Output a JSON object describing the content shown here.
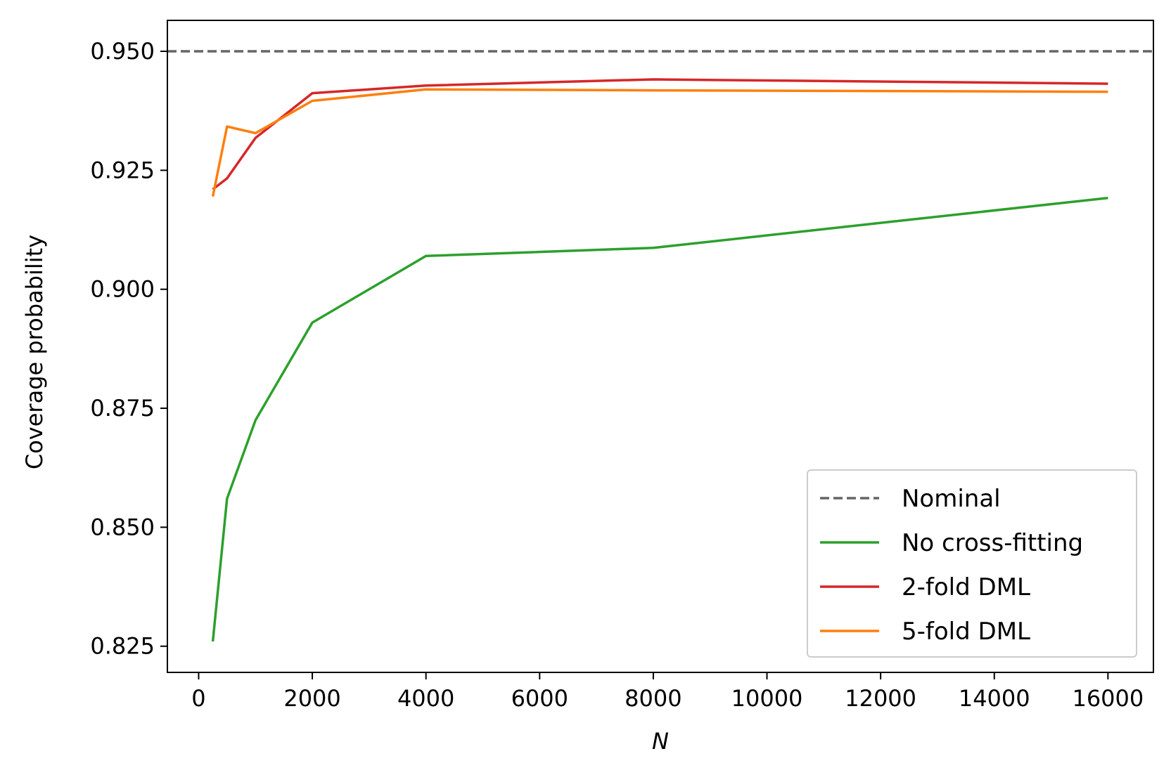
{
  "chart_data": {
    "type": "line",
    "title": "",
    "xlabel": "N",
    "ylabel": "Coverage probability",
    "xlim": [
      -550,
      16800
    ],
    "ylim": [
      0.8195,
      0.9565
    ],
    "xticks": [
      0,
      2000,
      4000,
      6000,
      8000,
      10000,
      12000,
      14000,
      16000
    ],
    "xtick_labels": [
      "0",
      "2000",
      "4000",
      "6000",
      "8000",
      "10000",
      "12000",
      "14000",
      "16000"
    ],
    "yticks": [
      0.825,
      0.85,
      0.875,
      0.9,
      0.925,
      0.95
    ],
    "ytick_labels": [
      "0.825",
      "0.850",
      "0.875",
      "0.900",
      "0.925",
      "0.950"
    ],
    "grid": false,
    "legend_position": "lower-right",
    "series": [
      {
        "name": "Nominal",
        "color": "#666666",
        "style": "dashed",
        "x": [
          -550,
          16800
        ],
        "y": [
          0.95,
          0.95
        ]
      },
      {
        "name": "No cross-fitting",
        "color": "#2ca02c",
        "style": "solid",
        "x": [
          250,
          500,
          1000,
          2000,
          4000,
          8000,
          16000
        ],
        "y": [
          0.826,
          0.856,
          0.8725,
          0.893,
          0.907,
          0.9087,
          0.9192
        ]
      },
      {
        "name": "2-fold DML",
        "color": "#d62728",
        "style": "solid",
        "x": [
          250,
          500,
          1000,
          2000,
          4000,
          8000,
          16000
        ],
        "y": [
          0.921,
          0.9233,
          0.9318,
          0.9412,
          0.9428,
          0.9441,
          0.9432
        ]
      },
      {
        "name": "5-fold DML",
        "color": "#ff7f0e",
        "style": "solid",
        "x": [
          250,
          500,
          1000,
          2000,
          4000,
          8000,
          16000
        ],
        "y": [
          0.9195,
          0.9342,
          0.9328,
          0.9396,
          0.942,
          0.9418,
          0.9415
        ]
      }
    ]
  }
}
